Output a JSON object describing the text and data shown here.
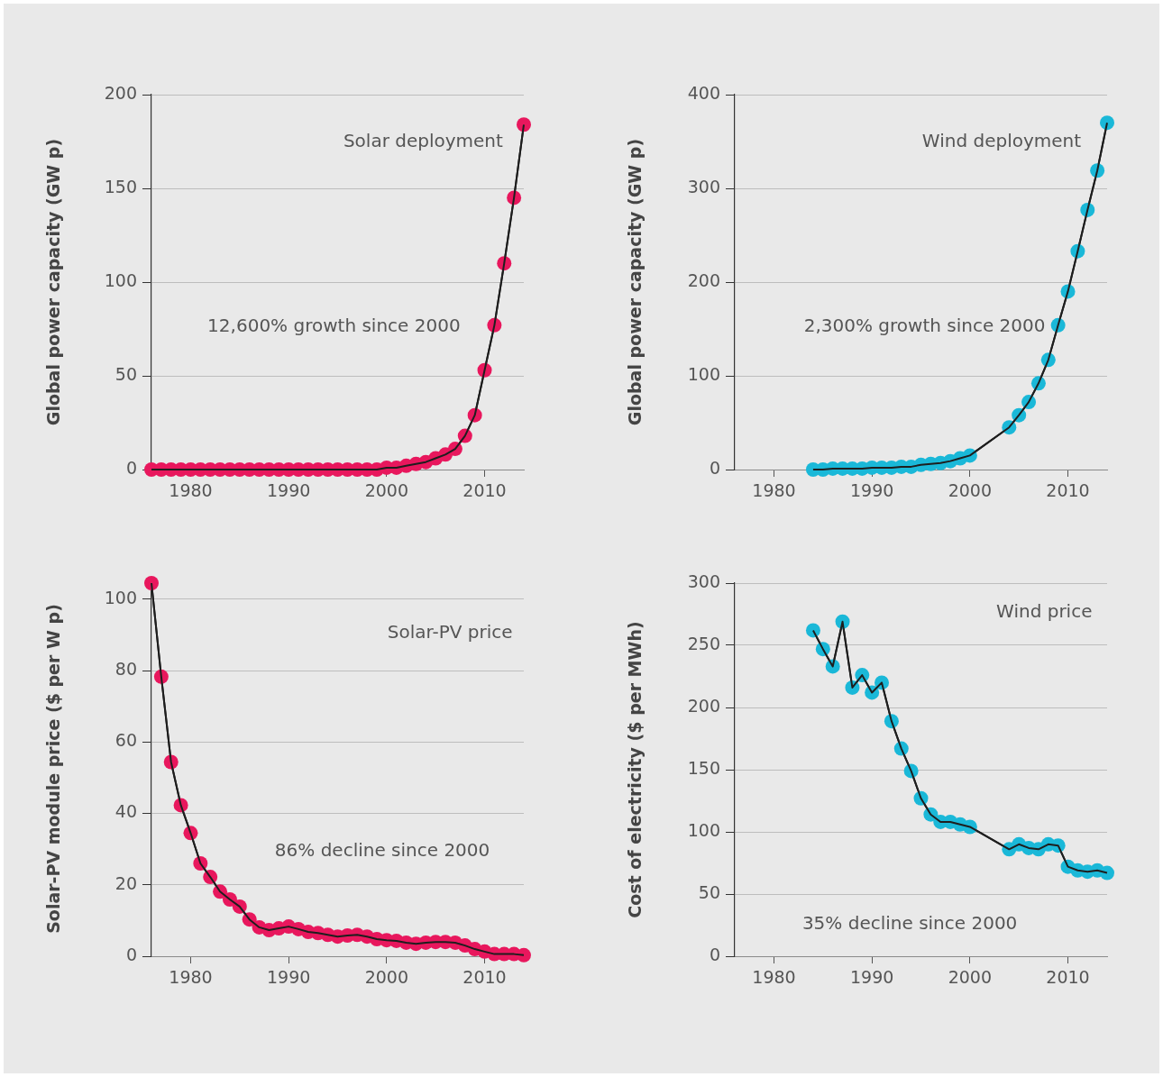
{
  "chart_data": [
    {
      "type": "line",
      "ylabel": "Global power capacity (GW p)",
      "annotations": [
        "Solar deployment",
        "12,600% growth since 2000"
      ],
      "x": [
        1976,
        1977,
        1978,
        1979,
        1980,
        1981,
        1982,
        1983,
        1984,
        1985,
        1986,
        1987,
        1988,
        1989,
        1990,
        1991,
        1992,
        1993,
        1994,
        1995,
        1996,
        1997,
        1998,
        1999,
        2000,
        2001,
        2002,
        2003,
        2004,
        2005,
        2006,
        2007,
        2008,
        2009,
        2010,
        2011,
        2012,
        2013,
        2014
      ],
      "series": [
        {
          "color": "#e8175d",
          "values": [
            0,
            0,
            0,
            0,
            0,
            0,
            0,
            0,
            0,
            0,
            0,
            0,
            0,
            0,
            0,
            0,
            0,
            0,
            0,
            0,
            0,
            0,
            0,
            0,
            1,
            1,
            2,
            3,
            4,
            6,
            8,
            11,
            18,
            29,
            53,
            77,
            110,
            145,
            184
          ]
        }
      ],
      "xlim": [
        1976,
        2014
      ],
      "xticks": [
        1980,
        1990,
        2000,
        2010
      ],
      "ylim": [
        0,
        200
      ],
      "yticks": [
        0,
        50,
        100,
        150,
        200
      ],
      "grid": "y",
      "marker": "circle"
    },
    {
      "type": "line",
      "ylabel": "Global power capacity (GW p)",
      "annotations": [
        "Wind deployment",
        "2,300% growth since 2000"
      ],
      "x": [
        1984,
        1985,
        1986,
        1987,
        1988,
        1989,
        1990,
        1991,
        1992,
        1993,
        1994,
        1995,
        1996,
        1997,
        1998,
        1999,
        2000,
        2004,
        2005,
        2006,
        2007,
        2008,
        2009,
        2010,
        2011,
        2012,
        2013,
        2014
      ],
      "series": [
        {
          "color": "#1ab8d8",
          "values": [
            0,
            0,
            1,
            1,
            1,
            1,
            2,
            2,
            2,
            3,
            3,
            5,
            6,
            7,
            9,
            12,
            15,
            45,
            58,
            72,
            92,
            117,
            154,
            190,
            233,
            277,
            319,
            370
          ]
        }
      ],
      "xlim": [
        1976,
        2014
      ],
      "xticks": [
        1980,
        1990,
        2000,
        2010
      ],
      "ylim": [
        0,
        400
      ],
      "yticks": [
        0,
        100,
        200,
        300,
        400
      ],
      "grid": "y",
      "marker": "circle"
    },
    {
      "type": "line",
      "ylabel": "Solar-PV module price ($ per W p)",
      "annotations": [
        "Solar-PV price",
        "86% decline since 2000"
      ],
      "x": [
        1976,
        1977,
        1978,
        1979,
        1980,
        1981,
        1982,
        1983,
        1984,
        1985,
        1986,
        1987,
        1988,
        1989,
        1990,
        1991,
        1992,
        1993,
        1994,
        1995,
        1996,
        1997,
        1998,
        1999,
        2000,
        2001,
        2002,
        2003,
        2004,
        2005,
        2006,
        2007,
        2008,
        2009,
        2010,
        2011,
        2012,
        2013,
        2014
      ],
      "series": [
        {
          "color": "#e8175d",
          "values": [
            104.5,
            78.3,
            54.4,
            42.3,
            34.5,
            26,
            22.2,
            18.1,
            15.9,
            13.9,
            10.3,
            8.1,
            7.3,
            7.8,
            8.3,
            7.6,
            6.8,
            6.5,
            6,
            5.5,
            5.8,
            6,
            5.5,
            4.8,
            4.5,
            4.3,
            3.8,
            3.5,
            3.8,
            4,
            4,
            3.8,
            3,
            2,
            1.3,
            0.6,
            0.6,
            0.6,
            0.3
          ]
        }
      ],
      "xlim": [
        1976,
        2014
      ],
      "xticks": [
        1980,
        1990,
        2000,
        2010
      ],
      "ylim": [
        0,
        105
      ],
      "yticks": [
        0,
        20,
        40,
        60,
        80,
        100
      ],
      "grid": "y",
      "marker": "circle"
    },
    {
      "type": "line",
      "ylabel": "Cost of electricity ($ per MWh)",
      "annotations": [
        "Wind price",
        "35% decline since 2000"
      ],
      "x": [
        1984,
        1985,
        1986,
        1987,
        1988,
        1989,
        1990,
        1991,
        1992,
        1993,
        1994,
        1995,
        1996,
        1997,
        1998,
        1999,
        2000,
        2004,
        2005,
        2006,
        2007,
        2008,
        2009,
        2010,
        2011,
        2012,
        2013,
        2014
      ],
      "series": [
        {
          "color": "#1ab8d8",
          "values": [
            262,
            247,
            233,
            269,
            216,
            226,
            212,
            220,
            189,
            167,
            149,
            127,
            114,
            108,
            108,
            106,
            104,
            86,
            90,
            87,
            86,
            90,
            89,
            72,
            69,
            68,
            69,
            67
          ]
        }
      ],
      "xlim": [
        1976,
        2014
      ],
      "xticks": [
        1980,
        1990,
        2000,
        2010
      ],
      "ylim": [
        0,
        300
      ],
      "yticks": [
        0,
        50,
        100,
        150,
        200,
        250,
        300
      ],
      "grid": "y",
      "marker": "circle"
    }
  ]
}
